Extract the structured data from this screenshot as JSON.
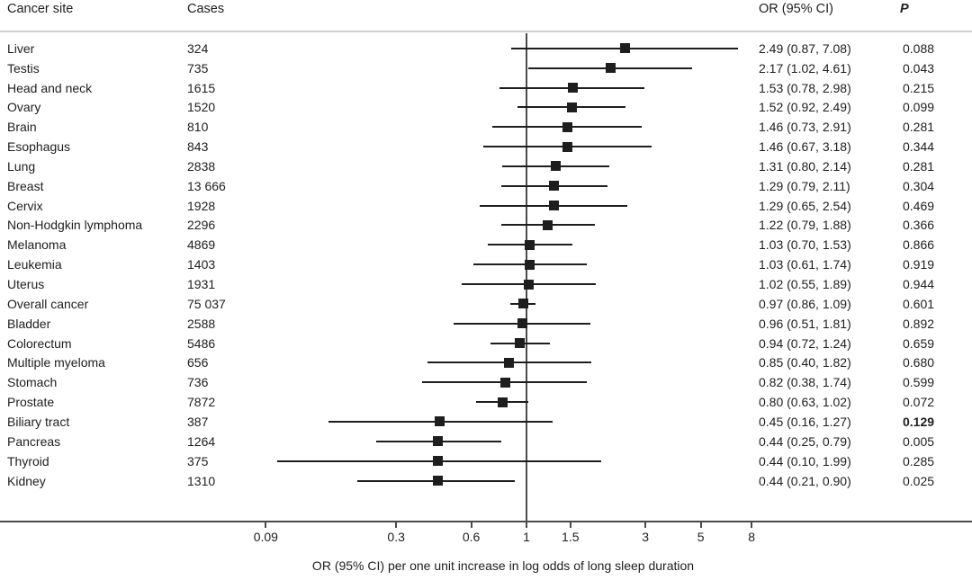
{
  "header": {
    "cancer_site": "Cancer site",
    "cases": "Cases",
    "or_ci": "OR (95% CI)",
    "p": "P"
  },
  "axis": {
    "scale": "log",
    "ticks": [
      0.09,
      0.3,
      0.6,
      1,
      1.5,
      3,
      5,
      8
    ],
    "tick_labels": [
      "0.09",
      "0.3",
      "0.6",
      "1",
      "1.5",
      "3",
      "5",
      "8"
    ],
    "title": "OR (95% CI) per one unit increase in log odds of long sleep duration"
  },
  "chart_data": {
    "type": "forest",
    "x_scale": "log",
    "reference_line": 1,
    "xlim": [
      0.09,
      8
    ],
    "columns": [
      "Cancer site",
      "Cases",
      "OR (95% CI)",
      "P"
    ],
    "rows": [
      {
        "site": "Liver",
        "cases": "324",
        "or": 2.49,
        "ci_low": 0.87,
        "ci_high": 7.08,
        "or_text": "2.49 (0.87, 7.08)",
        "p": "0.088",
        "p_bold": false
      },
      {
        "site": "Testis",
        "cases": "735",
        "or": 2.17,
        "ci_low": 1.02,
        "ci_high": 4.61,
        "or_text": "2.17 (1.02, 4.61)",
        "p": "0.043",
        "p_bold": false
      },
      {
        "site": "Head and neck",
        "cases": "1615",
        "or": 1.53,
        "ci_low": 0.78,
        "ci_high": 2.98,
        "or_text": "1.53 (0.78, 2.98)",
        "p": "0.215",
        "p_bold": false
      },
      {
        "site": "Ovary",
        "cases": "1520",
        "or": 1.52,
        "ci_low": 0.92,
        "ci_high": 2.49,
        "or_text": "1.52 (0.92, 2.49)",
        "p": "0.099",
        "p_bold": false
      },
      {
        "site": "Brain",
        "cases": "810",
        "or": 1.46,
        "ci_low": 0.73,
        "ci_high": 2.91,
        "or_text": "1.46 (0.73, 2.91)",
        "p": "0.281",
        "p_bold": false
      },
      {
        "site": "Esophagus",
        "cases": "843",
        "or": 1.46,
        "ci_low": 0.67,
        "ci_high": 3.18,
        "or_text": "1.46 (0.67, 3.18)",
        "p": "0.344",
        "p_bold": false
      },
      {
        "site": "Lung",
        "cases": "2838",
        "or": 1.31,
        "ci_low": 0.8,
        "ci_high": 2.14,
        "or_text": "1.31 (0.80, 2.14)",
        "p": "0.281",
        "p_bold": false
      },
      {
        "site": "Breast",
        "cases": "13 666",
        "or": 1.29,
        "ci_low": 0.79,
        "ci_high": 2.11,
        "or_text": "1.29 (0.79, 2.11)",
        "p": "0.304",
        "p_bold": false
      },
      {
        "site": "Cervix",
        "cases": "1928",
        "or": 1.29,
        "ci_low": 0.65,
        "ci_high": 2.54,
        "or_text": "1.29 (0.65, 2.54)",
        "p": "0.469",
        "p_bold": false
      },
      {
        "site": "Non-Hodgkin lymphoma",
        "cases": "2296",
        "or": 1.22,
        "ci_low": 0.79,
        "ci_high": 1.88,
        "or_text": "1.22 (0.79, 1.88)",
        "p": "0.366",
        "p_bold": false
      },
      {
        "site": "Melanoma",
        "cases": "4869",
        "or": 1.03,
        "ci_low": 0.7,
        "ci_high": 1.53,
        "or_text": "1.03 (0.70, 1.53)",
        "p": "0.866",
        "p_bold": false
      },
      {
        "site": "Leukemia",
        "cases": "1403",
        "or": 1.03,
        "ci_low": 0.61,
        "ci_high": 1.74,
        "or_text": "1.03 (0.61, 1.74)",
        "p": "0.919",
        "p_bold": false
      },
      {
        "site": "Uterus",
        "cases": "1931",
        "or": 1.02,
        "ci_low": 0.55,
        "ci_high": 1.89,
        "or_text": "1.02 (0.55, 1.89)",
        "p": "0.944",
        "p_bold": false
      },
      {
        "site": "Overall cancer",
        "cases": "75 037",
        "or": 0.97,
        "ci_low": 0.86,
        "ci_high": 1.09,
        "or_text": "0.97 (0.86, 1.09)",
        "p": "0.601",
        "p_bold": false
      },
      {
        "site": "Bladder",
        "cases": "2588",
        "or": 0.96,
        "ci_low": 0.51,
        "ci_high": 1.81,
        "or_text": "0.96 (0.51, 1.81)",
        "p": "0.892",
        "p_bold": false
      },
      {
        "site": "Colorectum",
        "cases": "5486",
        "or": 0.94,
        "ci_low": 0.72,
        "ci_high": 1.24,
        "or_text": "0.94 (0.72, 1.24)",
        "p": "0.659",
        "p_bold": false
      },
      {
        "site": "Multiple myeloma",
        "cases": "656",
        "or": 0.85,
        "ci_low": 0.4,
        "ci_high": 1.82,
        "or_text": "0.85 (0.40, 1.82)",
        "p": "0.680",
        "p_bold": false
      },
      {
        "site": "Stomach",
        "cases": "736",
        "or": 0.82,
        "ci_low": 0.38,
        "ci_high": 1.74,
        "or_text": "0.82 (0.38, 1.74)",
        "p": "0.599",
        "p_bold": false
      },
      {
        "site": "Prostate",
        "cases": "7872",
        "or": 0.8,
        "ci_low": 0.63,
        "ci_high": 1.02,
        "or_text": "0.80 (0.63, 1.02)",
        "p": "0.072",
        "p_bold": false
      },
      {
        "site": "Biliary tract",
        "cases": "387",
        "or": 0.45,
        "ci_low": 0.16,
        "ci_high": 1.27,
        "or_text": "0.45 (0.16, 1.27)",
        "p": "0.129",
        "p_bold": true
      },
      {
        "site": "Pancreas",
        "cases": "1264",
        "or": 0.44,
        "ci_low": 0.25,
        "ci_high": 0.79,
        "or_text": "0.44 (0.25, 0.79)",
        "p": "0.005",
        "p_bold": false
      },
      {
        "site": "Thyroid",
        "cases": "375",
        "or": 0.44,
        "ci_low": 0.1,
        "ci_high": 1.99,
        "or_text": "0.44 (0.10, 1.99)",
        "p": "0.285",
        "p_bold": false
      },
      {
        "site": "Kidney",
        "cases": "1310",
        "or": 0.44,
        "ci_low": 0.21,
        "ci_high": 0.9,
        "or_text": "0.44 (0.21, 0.90)",
        "p": "0.025",
        "p_bold": false
      }
    ]
  },
  "colors": {
    "ink": "#1e1e1e",
    "axis_line": "#4a4a4a",
    "divider": "#cfcfcf",
    "background": "#ffffff"
  }
}
